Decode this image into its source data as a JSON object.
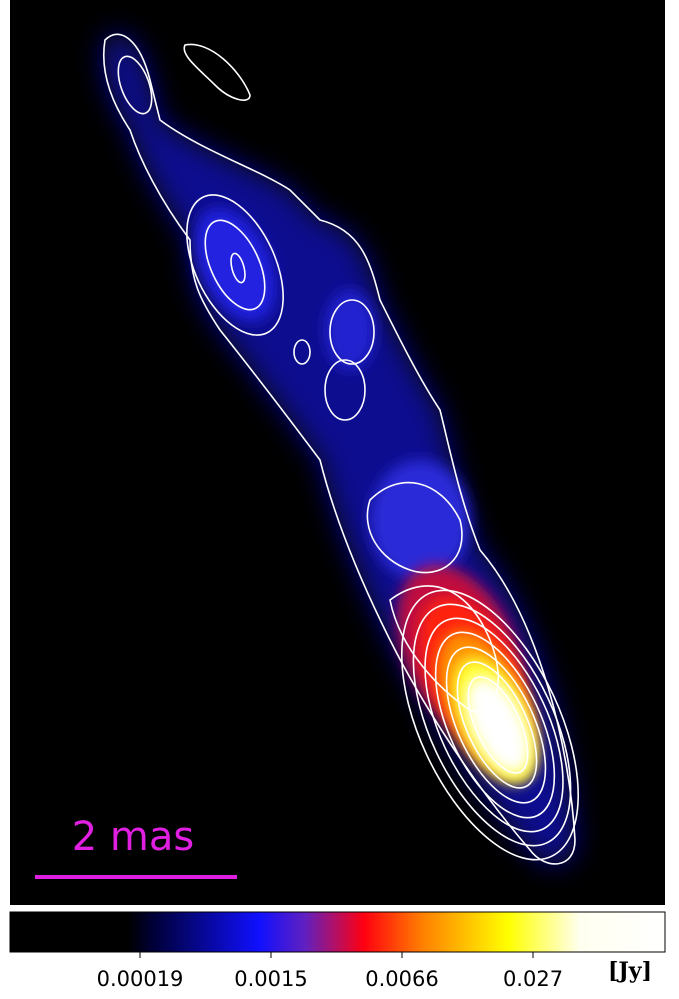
{
  "scale_bar": {
    "label": "2 mas"
  },
  "colorbar": {
    "ticks": [
      "0.00019",
      "0.0015",
      "0.0066",
      "0.027"
    ],
    "unit": "[Jy]"
  }
}
